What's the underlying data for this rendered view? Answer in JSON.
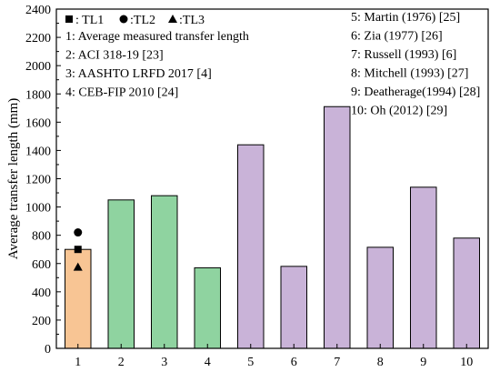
{
  "chart_data": {
    "type": "bar",
    "ylabel": "Average transfer length (mm)",
    "xlabel": "",
    "categories": [
      "1",
      "2",
      "3",
      "4",
      "5",
      "6",
      "7",
      "8",
      "9",
      "10"
    ],
    "values": [
      700,
      1050,
      1080,
      570,
      1440,
      580,
      1710,
      715,
      1140,
      780
    ],
    "bar_colors": [
      "#F8C594",
      "#8FD3A0",
      "#8FD3A0",
      "#8FD3A0",
      "#C9B3D8",
      "#C9B3D8",
      "#C9B3D8",
      "#C9B3D8",
      "#C9B3D8",
      "#C9B3D8"
    ],
    "ylim": [
      0,
      2400
    ],
    "yticks": [
      "0",
      "200",
      "400",
      "600",
      "800",
      "1000",
      "1200",
      "1400",
      "1600",
      "1800",
      "2000",
      "2200",
      "2400"
    ],
    "markers": [
      {
        "symbol": "square",
        "category": "1",
        "value": 700
      },
      {
        "symbol": "circle",
        "category": "1",
        "value": 820
      },
      {
        "symbol": "triangle",
        "category": "1",
        "value": 575
      }
    ],
    "legend": {
      "symbols": [
        {
          "symbol": "square",
          "label": ": TL1"
        },
        {
          "symbol": "circle",
          "label": " :TL2"
        },
        {
          "symbol": "triangle",
          "label": ":TL3"
        }
      ],
      "left_items": [
        "1: Average measured transfer length",
        "2: ACI 318-19 [23]",
        "3: AASHTO LRFD 2017 [4]",
        "4: CEB-FIP 2010 [24]"
      ],
      "right_items": [
        "5: Martin  (1976) [25]",
        "6: Zia  (1977) [26]",
        "7: Russell  (1993) [6]",
        "8: Mitchell (1993) [27]",
        "9: Deatherage(1994) [28]",
        "10: Oh (2012) [29]"
      ]
    }
  }
}
